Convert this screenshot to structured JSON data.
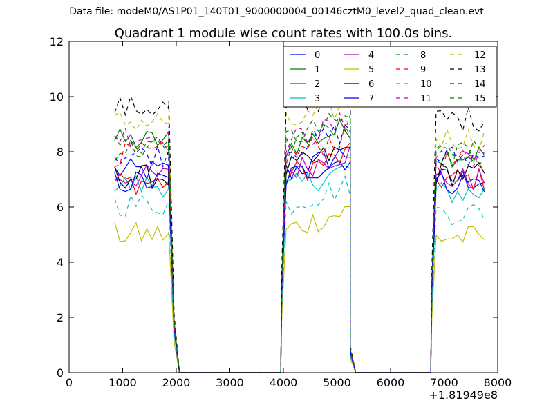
{
  "suptitle": "Data file: modeM0/AS1P01_140T01_9000000004_00146cztM0_level2_quad_clean.evt",
  "chart_data": {
    "type": "line",
    "title": "Quadrant 1 module wise count rates with 100.0s bins.",
    "xlabel": "",
    "ylabel": "",
    "xlim": [
      0,
      8000
    ],
    "ylim": [
      0,
      12
    ],
    "xticks": [
      0,
      1000,
      2000,
      3000,
      4000,
      5000,
      6000,
      7000,
      8000
    ],
    "yticks": [
      0,
      2,
      4,
      6,
      8,
      10,
      12
    ],
    "x_offset_label": "+1.81949e8",
    "grid": false,
    "legend": {
      "position": "upper-right",
      "ncol": 4
    },
    "segments": [
      {
        "start": 850,
        "step": 100,
        "points": 11
      },
      {
        "start": 3950,
        "step": 100,
        "points": 14
      },
      {
        "start": 6750,
        "step": 100,
        "points": 11
      }
    ],
    "drop_edges": [
      {
        "edge_x": 1860,
        "zero_x": 2060,
        "mid_frac": 0.22
      },
      {
        "edge_x": 5150,
        "zero_x": 5350,
        "mid_frac": 0.1
      },
      {
        "edge_x": 4050,
        "zero_x": 3950,
        "mid_frac": 0.4
      },
      {
        "edge_x": 6850,
        "zero_x": 6750,
        "mid_frac": 0.4
      }
    ],
    "series": [
      {
        "name": "0",
        "color": "#0000ff",
        "dash": "solid",
        "levels": [
          7.3,
          7.2,
          7.0
        ]
      },
      {
        "name": "1",
        "color": "#008000",
        "dash": "solid",
        "levels": [
          8.4,
          8.1,
          7.9
        ]
      },
      {
        "name": "2",
        "color": "#ff0000",
        "dash": "solid",
        "levels": [
          6.9,
          7.1,
          7.0
        ]
      },
      {
        "name": "3",
        "color": "#00bfbf",
        "dash": "solid",
        "levels": [
          6.8,
          6.6,
          6.5
        ]
      },
      {
        "name": "4",
        "color": "#bf00bf",
        "dash": "solid",
        "levels": [
          7.1,
          7.2,
          7.0
        ]
      },
      {
        "name": "5",
        "color": "#bfbf00",
        "dash": "solid",
        "levels": [
          5.0,
          5.1,
          4.9
        ]
      },
      {
        "name": "6",
        "color": "#000000",
        "dash": "solid",
        "levels": [
          7.1,
          7.3,
          7.2
        ]
      },
      {
        "name": "7",
        "color": "#0000ff",
        "dash": "solid",
        "levels": [
          6.9,
          7.0,
          6.9
        ]
      },
      {
        "name": "8",
        "color": "#008000",
        "dash": "dashed",
        "levels": [
          8.3,
          8.4,
          8.1
        ]
      },
      {
        "name": "9",
        "color": "#ff0000",
        "dash": "dashed",
        "levels": [
          7.9,
          7.8,
          7.6
        ]
      },
      {
        "name": "10",
        "color": "#00bfbf",
        "dash": "dashed",
        "levels": [
          6.1,
          6.0,
          5.8
        ]
      },
      {
        "name": "11",
        "color": "#bf00bf",
        "dash": "dashed",
        "levels": [
          8.6,
          8.3,
          7.9
        ]
      },
      {
        "name": "12",
        "color": "#bfbf00",
        "dash": "dashed",
        "levels": [
          9.1,
          8.9,
          8.5
        ]
      },
      {
        "name": "13",
        "color": "#000000",
        "dash": "dashed",
        "levels": [
          9.6,
          9.4,
          9.2
        ]
      },
      {
        "name": "14",
        "color": "#0000ff",
        "dash": "dashed",
        "levels": [
          7.9,
          8.0,
          7.8
        ]
      },
      {
        "name": "15",
        "color": "#008000",
        "dash": "dashed",
        "levels": [
          8.1,
          8.2,
          7.9
        ]
      }
    ]
  }
}
